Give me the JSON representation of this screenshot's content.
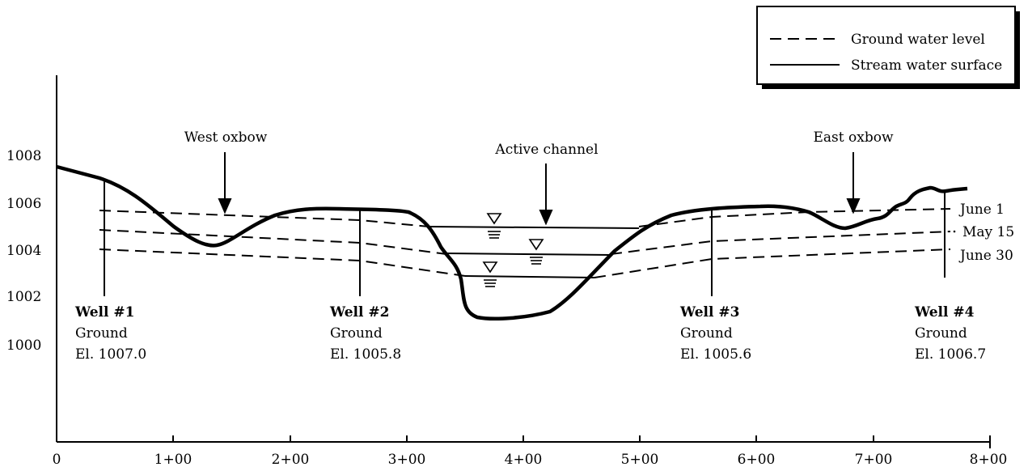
{
  "legend": {
    "groundwater": "Ground water level",
    "stream": "Stream water surface"
  },
  "axes": {
    "x_ticks": [
      "0",
      "1+00",
      "2+00",
      "3+00",
      "4+00",
      "5+00",
      "6+00",
      "7+00",
      "8+00"
    ],
    "y_ticks": [
      "1000",
      "1002",
      "1004",
      "1006",
      "1008"
    ]
  },
  "annotations": {
    "west_oxbow": "West oxbow",
    "active_channel": "Active channel",
    "east_oxbow": "East oxbow"
  },
  "dates": {
    "june1": "June 1",
    "may15": "May 15",
    "june30": "June 30"
  },
  "wells": [
    {
      "name": "Well #1",
      "ground": "Ground",
      "elev": "El. 1007.0"
    },
    {
      "name": "Well #2",
      "ground": "Ground",
      "elev": "El. 1005.8"
    },
    {
      "name": "Well #3",
      "ground": "Ground",
      "elev": "El. 1005.6"
    },
    {
      "name": "Well #4",
      "ground": "Ground",
      "elev": "El. 1006.7"
    }
  ]
}
